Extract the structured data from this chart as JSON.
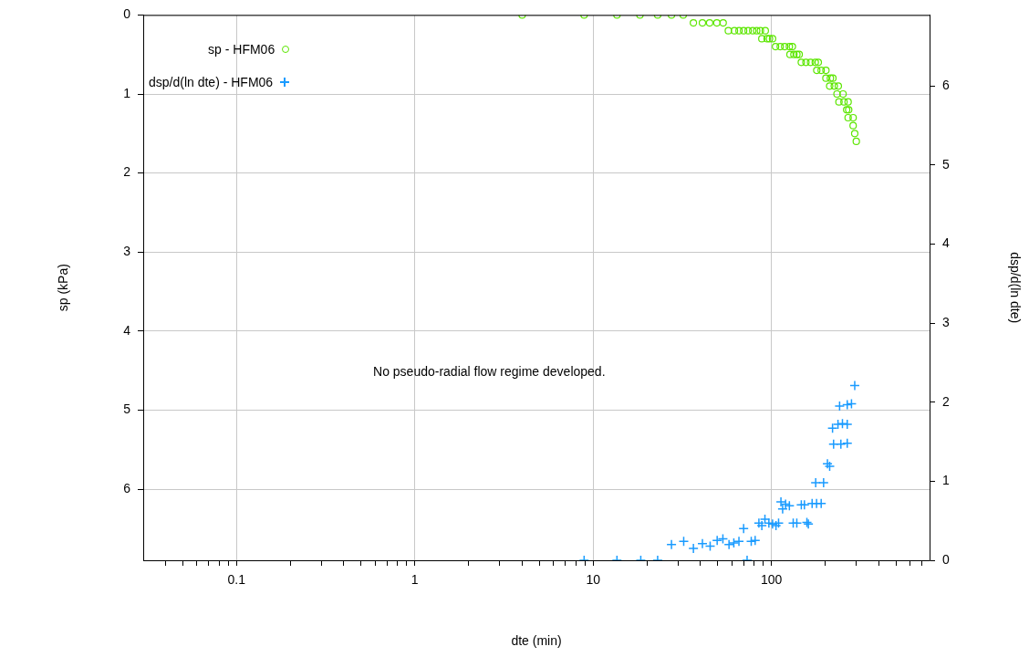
{
  "chart_data": {
    "type": "scatter",
    "xlabel": "dte (min)",
    "ylabel": "sp (kPa)",
    "y2label": "dsp/d(ln dte)",
    "log": "x",
    "grid": true,
    "legend": "top left",
    "xlim": [
      0.03,
      770
    ],
    "ylim": [
      6.9,
      0
    ],
    "y2lim": [
      0,
      6.9
    ],
    "xticks": [
      {
        "value": 0.04,
        "label": null
      },
      {
        "value": 0.05,
        "label": null
      },
      {
        "value": 0.06,
        "label": null
      },
      {
        "value": 0.07,
        "label": null
      },
      {
        "value": 0.08,
        "label": null
      },
      {
        "value": 0.09,
        "label": null
      },
      0.1,
      {
        "value": 0.2,
        "label": null
      },
      {
        "value": 0.3,
        "label": null
      },
      {
        "value": 0.4,
        "label": null
      },
      {
        "value": 0.5,
        "label": null
      },
      {
        "value": 0.6,
        "label": null
      },
      {
        "value": 0.7,
        "label": null
      },
      {
        "value": 0.8,
        "label": null
      },
      {
        "value": 0.9,
        "label": null
      },
      1,
      {
        "value": 2,
        "label": null
      },
      {
        "value": 3,
        "label": null
      },
      {
        "value": 4,
        "label": null
      },
      {
        "value": 5,
        "label": null
      },
      {
        "value": 6,
        "label": null
      },
      {
        "value": 7,
        "label": null
      },
      {
        "value": 8,
        "label": null
      },
      {
        "value": 9,
        "label": null
      },
      10,
      {
        "value": 20,
        "label": null
      },
      {
        "value": 30,
        "label": null
      },
      {
        "value": 40,
        "label": null
      },
      {
        "value": 50,
        "label": null
      },
      {
        "value": 60,
        "label": null
      },
      {
        "value": 70,
        "label": null
      },
      {
        "value": 80,
        "label": null
      },
      {
        "value": 90,
        "label": null
      },
      100,
      {
        "value": 200,
        "label": null
      },
      {
        "value": 300,
        "label": null
      },
      {
        "value": 400,
        "label": null
      },
      {
        "value": 500,
        "label": null
      },
      {
        "value": 600,
        "label": null
      },
      {
        "value": 700,
        "label": null
      }
    ],
    "yticks": [
      0,
      1,
      2,
      3,
      4,
      5,
      6
    ],
    "y2ticks": [
      0,
      1,
      2,
      3,
      4,
      5,
      6
    ],
    "annotations": [
      "No pseudo-radial flow regime developed."
    ],
    "series": [
      {
        "name": "sp - HFM06",
        "color": "#5ce600",
        "marker": "circle",
        "x": [
          4,
          8.9,
          13.6,
          18.3,
          23,
          27.5,
          32,
          36.5,
          41,
          45,
          49.4,
          53.6,
          57.3,
          62,
          65.8,
          69.8,
          74,
          78.5,
          82.6,
          86.7,
          92.3,
          88.3,
          94.5,
          97.5,
          101.4,
          105.4,
          112,
          118.6,
          126,
          131,
          127,
          133.6,
          138.8,
          143,
          147,
          156,
          165.6,
          176,
          183,
          179.5,
          190,
          202,
          202,
          214,
          221,
          212,
          225,
          237,
          233,
          252,
          239,
          255,
          269,
          264,
          271,
          269,
          287,
          287,
          293,
          299
        ],
        "values": [
          0,
          0,
          0,
          0,
          0,
          0,
          0,
          0.1,
          0.1,
          0.1,
          0.1,
          0.1,
          0.2,
          0.2,
          0.2,
          0.2,
          0.2,
          0.2,
          0.2,
          0.2,
          0.2,
          0.3,
          0.3,
          0.3,
          0.3,
          0.4,
          0.4,
          0.4,
          0.4,
          0.4,
          0.5,
          0.5,
          0.5,
          0.5,
          0.6,
          0.6,
          0.6,
          0.6,
          0.6,
          0.7,
          0.7,
          0.7,
          0.8,
          0.8,
          0.8,
          0.9,
          0.9,
          0.9,
          1.0,
          1.0,
          1.1,
          1.1,
          1.1,
          1.2,
          1.2,
          1.3,
          1.3,
          1.4,
          1.5,
          1.6
        ]
      },
      {
        "name": "dsp/d(ln dte) - HFM06",
        "color": "#1a9bff",
        "marker": "cross",
        "axis": "y2",
        "x": [
          8.9,
          13.6,
          18.5,
          23,
          73,
          27.5,
          32.2,
          36.5,
          41,
          45.3,
          49.6,
          53.4,
          57.8,
          61.5,
          65.7,
          69.8,
          77,
          81,
          85,
          88.3,
          91.9,
          96.7,
          101.4,
          106,
          109.6,
          113,
          115.5,
          120,
          126,
          132.4,
          138.7,
          158,
          161,
          147,
          153,
          169,
          179,
          190,
          177,
          196,
          206,
          212,
          223,
          245,
          266,
          220,
          236,
          250,
          266,
          241,
          266,
          281,
          293
        ],
        "values": [
          0,
          0,
          0,
          0,
          0,
          0.2,
          0.24,
          0.15,
          0.21,
          0.18,
          0.25,
          0.27,
          0.2,
          0.22,
          0.24,
          0.4,
          0.24,
          0.25,
          0.47,
          0.44,
          0.52,
          0.47,
          0.46,
          0.44,
          0.47,
          0.74,
          0.65,
          0.71,
          0.69,
          0.47,
          0.47,
          0.48,
          0.46,
          0.7,
          0.7,
          0.72,
          0.72,
          0.72,
          0.98,
          0.98,
          1.22,
          1.19,
          1.47,
          1.47,
          1.48,
          1.67,
          1.72,
          1.73,
          1.72,
          1.95,
          1.97,
          1.98,
          2.21
        ]
      }
    ]
  }
}
